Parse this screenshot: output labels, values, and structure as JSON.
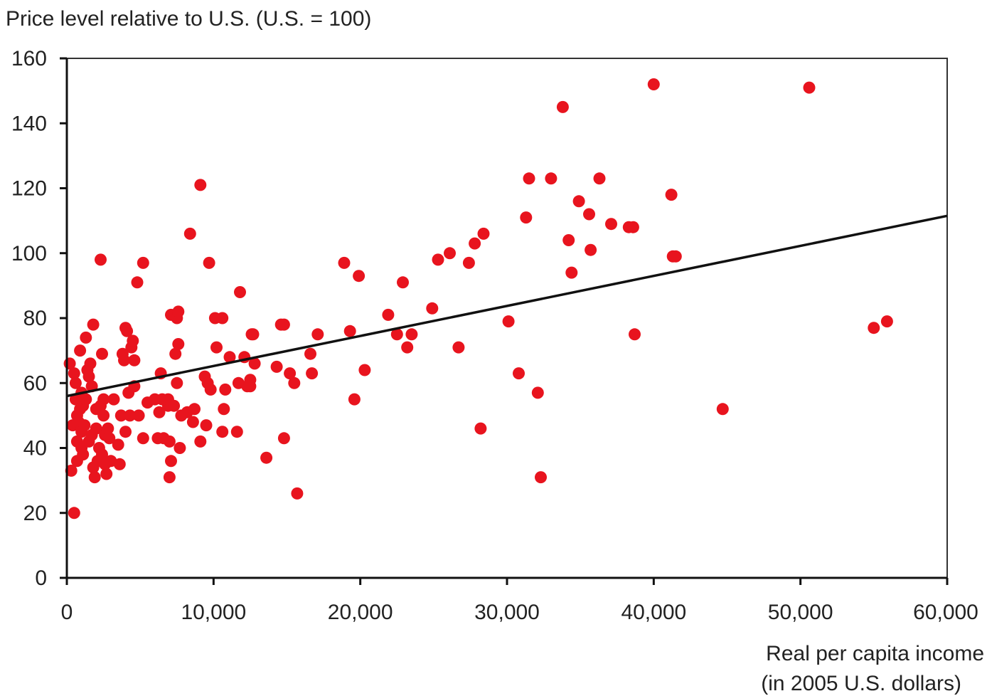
{
  "chart_data": {
    "type": "scatter",
    "ylabel": "Price level relative to U.S. (U.S. = 100)",
    "xlabel_lines": [
      "Real per capita income",
      "(in 2005 U.S. dollars)"
    ],
    "xlim": [
      0,
      60000
    ],
    "ylim": [
      0,
      160
    ],
    "x_ticks": [
      0,
      10000,
      20000,
      30000,
      40000,
      50000,
      60000
    ],
    "x_tick_labels": [
      "0",
      "10,000",
      "20,000",
      "30,000",
      "40,000",
      "50,000",
      "60,000"
    ],
    "y_ticks": [
      0,
      20,
      40,
      60,
      80,
      100,
      120,
      140,
      160
    ],
    "y_tick_labels": [
      "0",
      "20",
      "40",
      "60",
      "80",
      "100",
      "120",
      "140",
      "160"
    ],
    "grid": false,
    "point_color": "#e8141e",
    "trend_color": "#111111",
    "trendline": {
      "x": [
        0,
        60000
      ],
      "y": [
        56,
        111.5
      ]
    },
    "points": [
      [
        200,
        66
      ],
      [
        300,
        33
      ],
      [
        400,
        47
      ],
      [
        500,
        20
      ],
      [
        500,
        63
      ],
      [
        600,
        60
      ],
      [
        600,
        55
      ],
      [
        700,
        50
      ],
      [
        700,
        42
      ],
      [
        700,
        36
      ],
      [
        800,
        48
      ],
      [
        900,
        70
      ],
      [
        900,
        52
      ],
      [
        1000,
        57
      ],
      [
        1000,
        45
      ],
      [
        1000,
        40
      ],
      [
        1100,
        38
      ],
      [
        1100,
        53
      ],
      [
        1200,
        47
      ],
      [
        1300,
        74
      ],
      [
        1300,
        55
      ],
      [
        1400,
        64
      ],
      [
        1500,
        62
      ],
      [
        1500,
        42
      ],
      [
        1600,
        66
      ],
      [
        1700,
        59
      ],
      [
        1700,
        44
      ],
      [
        1800,
        78
      ],
      [
        1800,
        34
      ],
      [
        1900,
        31
      ],
      [
        2000,
        52
      ],
      [
        2000,
        46
      ],
      [
        2100,
        36
      ],
      [
        2200,
        40
      ],
      [
        2300,
        98
      ],
      [
        2300,
        53
      ],
      [
        2400,
        69
      ],
      [
        2400,
        38
      ],
      [
        2500,
        55
      ],
      [
        2500,
        50
      ],
      [
        2600,
        44
      ],
      [
        2600,
        35
      ],
      [
        2700,
        32
      ],
      [
        2800,
        46
      ],
      [
        2900,
        43
      ],
      [
        3000,
        36
      ],
      [
        3200,
        55
      ],
      [
        3500,
        41
      ],
      [
        3600,
        35
      ],
      [
        3700,
        50
      ],
      [
        3800,
        69
      ],
      [
        3900,
        67
      ],
      [
        4000,
        77
      ],
      [
        4000,
        45
      ],
      [
        4100,
        76
      ],
      [
        4200,
        57
      ],
      [
        4300,
        50
      ],
      [
        4400,
        71
      ],
      [
        4500,
        73
      ],
      [
        4600,
        67
      ],
      [
        4600,
        59
      ],
      [
        4800,
        91
      ],
      [
        4900,
        50
      ],
      [
        5200,
        97
      ],
      [
        5200,
        43
      ],
      [
        5500,
        54
      ],
      [
        6000,
        55
      ],
      [
        6200,
        43
      ],
      [
        6300,
        51
      ],
      [
        6400,
        63
      ],
      [
        6500,
        55
      ],
      [
        6600,
        43
      ],
      [
        6900,
        53
      ],
      [
        6900,
        55
      ],
      [
        7000,
        42
      ],
      [
        7000,
        31
      ],
      [
        7100,
        81
      ],
      [
        7100,
        36
      ],
      [
        7300,
        53
      ],
      [
        7400,
        69
      ],
      [
        7500,
        80
      ],
      [
        7500,
        60
      ],
      [
        7600,
        82
      ],
      [
        7600,
        72
      ],
      [
        7700,
        40
      ],
      [
        7800,
        50
      ],
      [
        8200,
        51
      ],
      [
        8400,
        106
      ],
      [
        8600,
        48
      ],
      [
        8700,
        52
      ],
      [
        9100,
        121
      ],
      [
        9100,
        42
      ],
      [
        9400,
        62
      ],
      [
        9500,
        47
      ],
      [
        9600,
        60
      ],
      [
        9700,
        97
      ],
      [
        9800,
        58
      ],
      [
        10100,
        80
      ],
      [
        10200,
        71
      ],
      [
        10600,
        80
      ],
      [
        10600,
        45
      ],
      [
        10700,
        52
      ],
      [
        10800,
        58
      ],
      [
        11100,
        68
      ],
      [
        11600,
        45
      ],
      [
        11700,
        60
      ],
      [
        11800,
        88
      ],
      [
        12100,
        68
      ],
      [
        12300,
        59
      ],
      [
        12500,
        61
      ],
      [
        12500,
        59
      ],
      [
        12600,
        75
      ],
      [
        12700,
        75
      ],
      [
        12800,
        66
      ],
      [
        13600,
        37
      ],
      [
        14300,
        65
      ],
      [
        14600,
        78
      ],
      [
        14800,
        78
      ],
      [
        14800,
        43
      ],
      [
        15200,
        63
      ],
      [
        15500,
        60
      ],
      [
        15700,
        26
      ],
      [
        16600,
        69
      ],
      [
        16700,
        63
      ],
      [
        17100,
        75
      ],
      [
        18900,
        97
      ],
      [
        19300,
        76
      ],
      [
        19600,
        55
      ],
      [
        19900,
        93
      ],
      [
        20300,
        64
      ],
      [
        21900,
        81
      ],
      [
        22500,
        75
      ],
      [
        22900,
        91
      ],
      [
        23200,
        71
      ],
      [
        23500,
        75
      ],
      [
        24900,
        83
      ],
      [
        25300,
        98
      ],
      [
        26100,
        100
      ],
      [
        26700,
        71
      ],
      [
        27400,
        97
      ],
      [
        27800,
        103
      ],
      [
        28200,
        46
      ],
      [
        28400,
        106
      ],
      [
        30100,
        79
      ],
      [
        30800,
        63
      ],
      [
        31300,
        111
      ],
      [
        31500,
        123
      ],
      [
        32100,
        57
      ],
      [
        32300,
        31
      ],
      [
        33000,
        123
      ],
      [
        33800,
        145
      ],
      [
        34200,
        104
      ],
      [
        34400,
        94
      ],
      [
        34900,
        116
      ],
      [
        35600,
        112
      ],
      [
        35700,
        101
      ],
      [
        36300,
        123
      ],
      [
        37100,
        109
      ],
      [
        38300,
        108
      ],
      [
        38600,
        108
      ],
      [
        38700,
        75
      ],
      [
        40000,
        152
      ],
      [
        41200,
        118
      ],
      [
        41300,
        99
      ],
      [
        41500,
        99
      ],
      [
        44700,
        52
      ],
      [
        50600,
        151
      ],
      [
        55000,
        77
      ],
      [
        55900,
        79
      ]
    ]
  }
}
